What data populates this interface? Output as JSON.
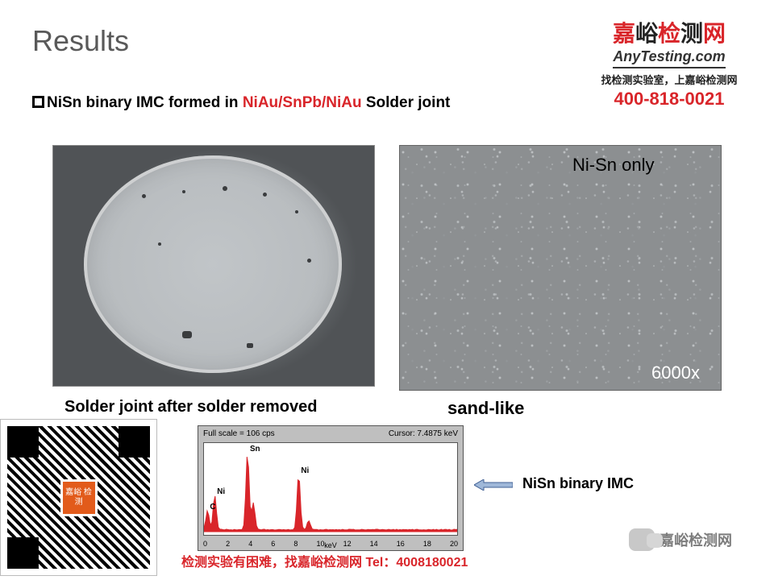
{
  "title": "Results",
  "logo": {
    "chars": "嘉峪检测网",
    "sub": "AnyTesting.com",
    "tagline": "找检测实验室，上嘉峪检测网",
    "phone": "400-818-0021"
  },
  "subtitle": {
    "prefix": "NiSn binary IMC formed in ",
    "highlight": "NiAu/SnPb/NiAu",
    "suffix": " Solder joint"
  },
  "captions": {
    "left": "Solder joint after solder removed",
    "right": "sand-like",
    "note1": "Ni-Sn only",
    "note2": "6000x"
  },
  "eds": {
    "header_left": "Full scale = 106 cps",
    "header_right": "Cursor: 7.4875 keV",
    "xaxis_unit": "keV",
    "ticks": [
      "0",
      "2",
      "4",
      "6",
      "8",
      "10",
      "12",
      "14",
      "16",
      "18",
      "20"
    ],
    "peaks": [
      {
        "x_kev": 0.28,
        "h": 0.25,
        "label": "C"
      },
      {
        "x_kev": 0.85,
        "h": 0.45,
        "label": "Ni"
      },
      {
        "x_kev": 3.44,
        "h": 1.0,
        "label": "Sn"
      },
      {
        "x_kev": 3.9,
        "h": 0.35,
        "label": ""
      },
      {
        "x_kev": 7.48,
        "h": 0.72,
        "label": "Ni"
      },
      {
        "x_kev": 8.27,
        "h": 0.12,
        "label": ""
      }
    ],
    "x_max": 20,
    "peak_color": "#d9252a",
    "label": "NiSn binary IMC"
  },
  "qr": {
    "center": "嘉峪\n检测"
  },
  "wechat": "嘉峪检测网",
  "footer": "检测实验有困难，找嘉峪检测网 Tel：4008180021"
}
